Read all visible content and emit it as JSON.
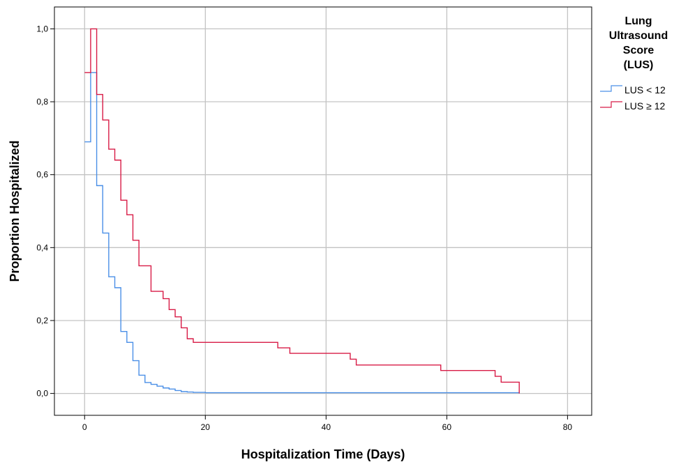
{
  "chart_data": {
    "type": "line",
    "step": true,
    "xlabel": "Hospitalization Time (Days)",
    "ylabel": "Proportion Hospitalized",
    "xlim": [
      -5,
      84
    ],
    "ylim": [
      -0.06,
      1.06
    ],
    "xticks": [
      0,
      20,
      40,
      60,
      80
    ],
    "xtick_labels": [
      "0",
      "20",
      "40",
      "60",
      "80"
    ],
    "yticks": [
      0.0,
      0.2,
      0.4,
      0.6,
      0.8,
      1.0
    ],
    "ytick_labels": [
      "0,0",
      "0,2",
      "0,4",
      "0,6",
      "0,8",
      "1,0"
    ],
    "grid": true,
    "legend": {
      "title": [
        "Lung",
        "Ultrasound",
        "Score",
        "(LUS)"
      ],
      "placement": "right"
    },
    "series": [
      {
        "name": "LUS < 12",
        "color": "#4a8fe7",
        "x": [
          0,
          1,
          2,
          3,
          4,
          5,
          6,
          7,
          8,
          9,
          10,
          11,
          12,
          13,
          14,
          15,
          16,
          17,
          18,
          20,
          72
        ],
        "y": [
          0.69,
          0.88,
          0.57,
          0.44,
          0.32,
          0.29,
          0.17,
          0.14,
          0.09,
          0.05,
          0.03,
          0.025,
          0.02,
          0.015,
          0.012,
          0.008,
          0.005,
          0.004,
          0.003,
          0.002,
          0.002
        ]
      },
      {
        "name": "LUS ≥ 12",
        "color": "#d81b46",
        "x": [
          0,
          1,
          2,
          3,
          4,
          5,
          6,
          7,
          8,
          9,
          11,
          13,
          14,
          15,
          16,
          17,
          18,
          32,
          34,
          44,
          45,
          59,
          68,
          69,
          72
        ],
        "y": [
          0.88,
          1.0,
          0.82,
          0.75,
          0.67,
          0.64,
          0.53,
          0.49,
          0.42,
          0.35,
          0.28,
          0.26,
          0.23,
          0.21,
          0.18,
          0.15,
          0.14,
          0.125,
          0.11,
          0.094,
          0.078,
          0.063,
          0.047,
          0.031,
          0.016
        ]
      }
    ],
    "end_x": 72,
    "end_value": 0.0
  }
}
